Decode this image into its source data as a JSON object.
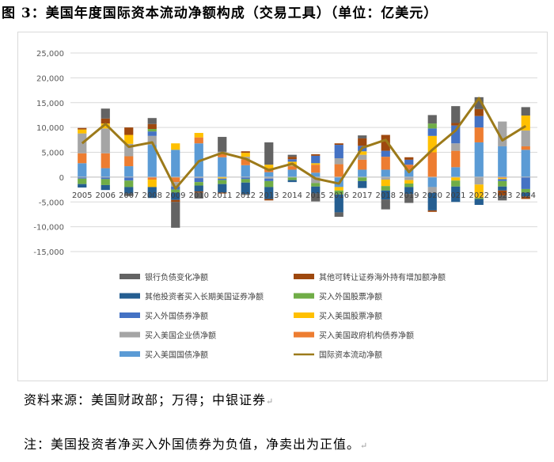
{
  "title": "图 3：美国年度国际资本流动净额构成（交易工具）（单位：亿美元）",
  "source": "资料来源：美国财政部；万得；中银证券",
  "note": "注：美国投资者净买入外国债券为负值，净卖出为正值。",
  "paragraph_mark": "↵",
  "chart_data": {
    "type": "bar",
    "stacked": true,
    "categories": [
      "2005",
      "2006",
      "2007",
      "2008",
      "2009",
      "2010",
      "2011",
      "2012",
      "2013",
      "2014",
      "2015",
      "2016",
      "2017",
      "2018",
      "2019",
      "2020",
      "2021",
      "2022",
      "2023",
      "2024"
    ],
    "ylim": [
      -15000,
      25000
    ],
    "yticks": [
      "25,000",
      "20,000",
      "15,000",
      "10,000",
      "5,000",
      "0",
      "-5,000",
      "-10,000",
      "-15,000"
    ],
    "ytick_values": [
      25000,
      20000,
      15000,
      10000,
      5000,
      0,
      -5000,
      -10000,
      -15000
    ],
    "grid": true,
    "legend_position": "bottom",
    "series": [
      {
        "name": "买入美国国债净额",
        "color": "#5b9bd5",
        "values": [
          2800,
          1800,
          2200,
          6500,
          5500,
          6800,
          4000,
          2400,
          1000,
          1500,
          900,
          -2000,
          1500,
          1500,
          1500,
          -2000,
          2000,
          7000,
          6200,
          5500
        ]
      },
      {
        "name": "买入美国政府机构债券净额",
        "color": "#ed7d31",
        "values": [
          2000,
          3000,
          2000,
          -500,
          -1000,
          1200,
          700,
          1200,
          800,
          700,
          1600,
          2600,
          2000,
          2600,
          1000,
          5000,
          3300,
          3000,
          -200,
          700
        ]
      },
      {
        "name": "买入美国企业债净额",
        "color": "#a5a5a5",
        "values": [
          4000,
          5000,
          2500,
          1800,
          -900,
          -200,
          400,
          500,
          -300,
          100,
          -1200,
          1200,
          1000,
          -500,
          -600,
          -1200,
          1500,
          -1500,
          5000,
          3200
        ]
      },
      {
        "name": "买入美国股票净额",
        "color": "#ffc000",
        "values": [
          800,
          1000,
          1800,
          -1500,
          1300,
          900,
          -300,
          800,
          700,
          800,
          300,
          -700,
          700,
          -1300,
          -700,
          3300,
          -700,
          -2700,
          -200,
          3000
        ]
      },
      {
        "name": "买入外国债券净额",
        "color": "#4472c4",
        "values": [
          -300,
          -400,
          -700,
          900,
          -600,
          -800,
          -300,
          -400,
          -500,
          500,
          1500,
          2700,
          1100,
          1200,
          1000,
          1500,
          3600,
          2300,
          -400,
          -2400
        ]
      },
      {
        "name": "买入外国股票净额",
        "color": "#70ad47",
        "values": [
          -1100,
          -1200,
          -1300,
          500,
          -600,
          -700,
          -800,
          -700,
          -1200,
          -600,
          -700,
          -800,
          -800,
          -900,
          -700,
          1000,
          -1200,
          -200,
          -1100,
          -700
        ]
      },
      {
        "name": "其他投资者买入长期美国证券净额",
        "color": "#255e91",
        "values": [
          -700,
          -1000,
          -1300,
          -2200,
          -1500,
          -1200,
          -1700,
          -2300,
          -2400,
          -400,
          -1400,
          -3600,
          -1400,
          -1800,
          -1400,
          -3500,
          -3100,
          -1200,
          -800,
          -800
        ]
      },
      {
        "name": "其他可转让证券海外持有增加额净额",
        "color": "#9e480e",
        "values": [
          300,
          1000,
          1500,
          1000,
          -400,
          -200,
          -200,
          300,
          -300,
          500,
          300,
          300,
          1500,
          3200,
          500,
          -300,
          500,
          1400,
          -1000,
          -500
        ]
      },
      {
        "name": "银行负债变化净额",
        "color": "#636363",
        "values": [
          0,
          2000,
          -500,
          1200,
          -5200,
          -1200,
          3000,
          -200,
          4500,
          400,
          -1600,
          -900,
          600,
          -2000,
          -1800,
          1700,
          3400,
          2400,
          -1000,
          1700
        ]
      }
    ],
    "line": {
      "name": "国际资本流动净额",
      "color": "#9c7a1a",
      "values": [
        6800,
        10700,
        6100,
        7000,
        -2300,
        3200,
        4900,
        3700,
        1400,
        2700,
        -300,
        -1300,
        5900,
        7500,
        1000,
        5500,
        9400,
        15900,
        7400,
        10300
      ]
    }
  }
}
